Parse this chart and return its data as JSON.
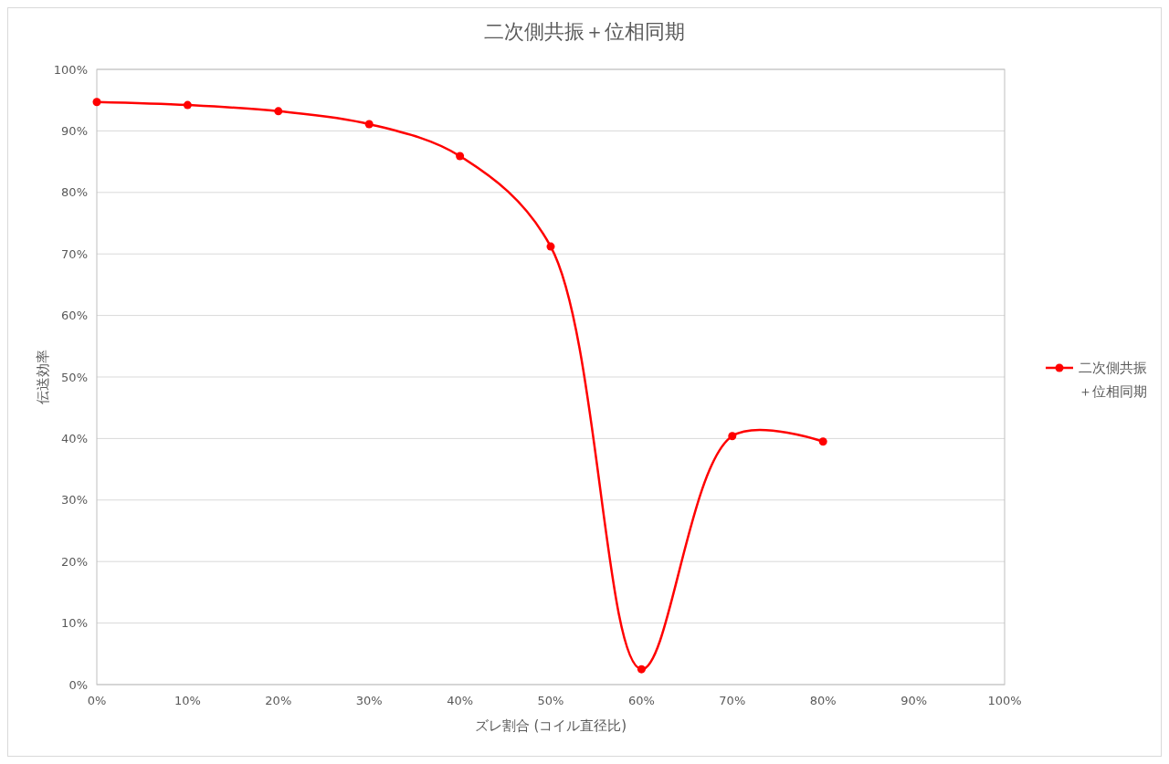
{
  "chart_data": {
    "type": "line",
    "title": "二次側共振＋位相同期",
    "xlabel": "ズレ割合 (コイル直径比)",
    "ylabel": "伝送効率",
    "x": [
      0,
      10,
      20,
      30,
      40,
      50,
      60,
      70,
      80
    ],
    "series": [
      {
        "name": "二次側共振＋位相同期",
        "color": "#ff0000",
        "values": [
          94.7,
          94.2,
          93.2,
          91.1,
          85.9,
          71.2,
          2.5,
          40.4,
          39.5
        ]
      }
    ],
    "xlim": [
      0,
      100
    ],
    "xticks": [
      {
        "value": 0,
        "label": "0%"
      },
      {
        "value": 10,
        "label": "10%"
      },
      {
        "value": 20,
        "label": "20%"
      },
      {
        "value": 30,
        "label": "30%"
      },
      {
        "value": 40,
        "label": "40%"
      },
      {
        "value": 50,
        "label": "50%"
      },
      {
        "value": 60,
        "label": "60%"
      },
      {
        "value": 70,
        "label": "70%"
      },
      {
        "value": 80,
        "label": "80%"
      },
      {
        "value": 90,
        "label": "90%"
      },
      {
        "value": 100,
        "label": "100%"
      }
    ],
    "ylim": [
      0,
      100
    ],
    "yticks": [
      {
        "value": 0,
        "label": "0%"
      },
      {
        "value": 10,
        "label": "10%"
      },
      {
        "value": 20,
        "label": "20%"
      },
      {
        "value": 30,
        "label": "30%"
      },
      {
        "value": 40,
        "label": "40%"
      },
      {
        "value": 50,
        "label": "50%"
      },
      {
        "value": 60,
        "label": "60%"
      },
      {
        "value": 70,
        "label": "70%"
      },
      {
        "value": 80,
        "label": "80%"
      },
      {
        "value": 90,
        "label": "90%"
      },
      {
        "value": 100,
        "label": "100%"
      }
    ],
    "grid": "y",
    "legend": "right",
    "marker": "circle",
    "line_style": "solid"
  }
}
